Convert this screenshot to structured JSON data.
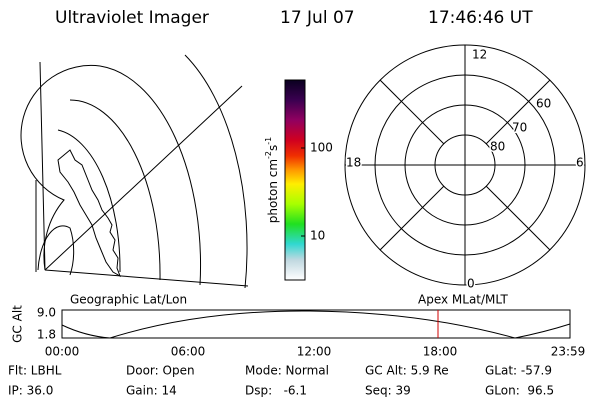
{
  "header": {
    "title": "Ultraviolet Imager",
    "date": "17 Jul 07",
    "time": "17:46:46 UT"
  },
  "colorbar": {
    "label": {
      "base": "photon cm",
      "exp1": "-2",
      "unit2": "s",
      "exp2": "-1"
    },
    "ticks": [
      "100",
      "10"
    ]
  },
  "polar": {
    "clock_labels": [
      "12",
      "6",
      "0",
      "18"
    ],
    "lat_labels": [
      "60",
      "70",
      "80"
    ]
  },
  "altitude_panel": {
    "y_label": "GC Alt",
    "yticks": [
      "9.0",
      "1.8"
    ],
    "left_label": "Geographic Lat/Lon",
    "right_label": "Apex MLat/MLT",
    "xticks": [
      "00:00",
      "06:00",
      "12:00",
      "18:00",
      "23:59"
    ]
  },
  "status": {
    "rows": [
      [
        "Flt: LBHL",
        "Door: Open",
        "Mode: Normal",
        "GC Alt: 5.9 Re",
        "GLat: -57.9"
      ],
      [
        "IP: 36.0",
        "Gain: 14",
        "Dsp:   -6.1",
        "Seq: 39",
        "GLon:  96.5"
      ]
    ]
  }
}
